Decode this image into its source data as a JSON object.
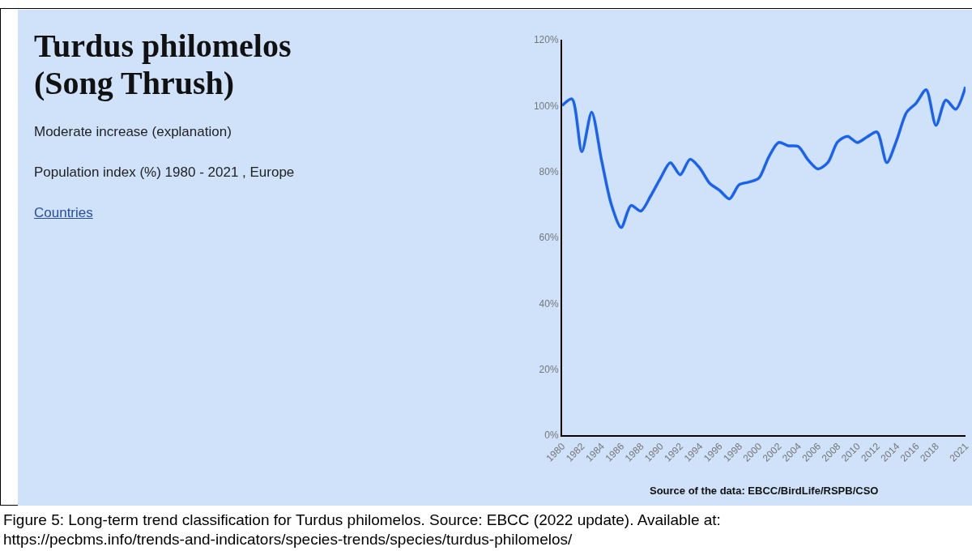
{
  "chart_data": {
    "type": "line",
    "title": "Turdus philomelos (Song Thrush)",
    "subtitle": "Moderate increase (explanation)",
    "annotations": [
      "Population index (%) 1980 - 2021 , Europe",
      "Countries",
      "Source of the data: EBCC/BirdLife/RSPB/CSO",
      "Figure 5: Long-term trend classification for Turdus philomelos. Source: EBCC (2022 update). Available at: https://pecbms.info/trends-and-indicators/species-trends/species/turdus-philomelos/"
    ],
    "x": [
      1980,
      1981,
      1982,
      1983,
      1984,
      1985,
      1986,
      1987,
      1988,
      1989,
      1990,
      1991,
      1992,
      1993,
      1994,
      1995,
      1996,
      1997,
      1998,
      1999,
      2000,
      2001,
      2002,
      2003,
      2004,
      2005,
      2006,
      2007,
      2008,
      2009,
      2010,
      2011,
      2012,
      2013,
      2014,
      2015,
      2016,
      2017,
      2018,
      2019,
      2020,
      2021
    ],
    "series": [
      {
        "color": "#1a62f0",
        "values": [
          100,
          102,
          86,
          98,
          83.5,
          70,
          63,
          69.7,
          68,
          72.6,
          78,
          82.7,
          79,
          83.7,
          81,
          76.4,
          74.3,
          71.7,
          76,
          76.8,
          78,
          84.4,
          88.8,
          87.8,
          87.6,
          83.5,
          80.8,
          82.7,
          89,
          90.7,
          88.8,
          90.5,
          92,
          82.7,
          89.5,
          97.9,
          100.8,
          104.8,
          94,
          101.7,
          98.9,
          105.7
        ]
      }
    ],
    "xlim": [
      1980,
      2021
    ],
    "xticks": [
      1980,
      1982,
      1984,
      1986,
      1988,
      1990,
      1992,
      1994,
      1996,
      1998,
      2000,
      2002,
      2004,
      2006,
      2008,
      2010,
      2012,
      2014,
      2016,
      2018,
      2021
    ],
    "ylim": [
      0,
      120
    ],
    "yticks": [
      {
        "value": 0,
        "label": "0%"
      },
      {
        "value": 20,
        "label": "20%"
      },
      {
        "value": 40,
        "label": "40%"
      },
      {
        "value": 60,
        "label": "60%"
      },
      {
        "value": 80,
        "label": "80%"
      },
      {
        "value": 100,
        "label": "100%"
      },
      {
        "value": 120,
        "label": "120%"
      }
    ],
    "grid": false,
    "marker": "none",
    "line_style": "solid"
  }
}
